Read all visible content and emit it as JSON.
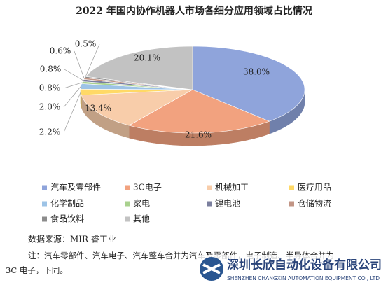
{
  "chart_data": {
    "type": "pie3d",
    "title": "2022 年国内协作机器人市场各细分应用领域占比情况",
    "categories": [
      "汽车及零部件",
      "3C电子",
      "机械加工",
      "医疗用品",
      "化学制品",
      "家电",
      "锂电池",
      "仓储物流",
      "食品饮料",
      "其他"
    ],
    "values": [
      38.0,
      21.6,
      13.4,
      2.2,
      2.0,
      0.8,
      0.8,
      0.6,
      0.5,
      20.1
    ],
    "value_labels": [
      "38.0%",
      "21.6%",
      "13.4%",
      "2.2%",
      "2.0%",
      "0.8%",
      "0.8%",
      "0.6%",
      "0.5%",
      "20.1%"
    ],
    "colors": [
      "#8FA4DB",
      "#F2A27F",
      "#F8CDAA",
      "#FFD966",
      "#9DC3E6",
      "#A9D18E",
      "#7B7F9E",
      "#C29585",
      "#8C8C8C",
      "#C2C2C2"
    ],
    "legend": "bottom"
  },
  "footer": {
    "source": "数据来源：MIR 睿工业",
    "note_lines": [
      "注：汽车零部件、汽车电子、汽车整车合并为汽车及零部件，电子制造、半导体合并为",
      "3C 电子，下同。"
    ]
  },
  "watermark": {
    "name": "深圳长欣自动化设备有限公司",
    "english": "SHENZHEN CHANGXIN AUTOMATION EQUIPMENT CO., LTD"
  }
}
